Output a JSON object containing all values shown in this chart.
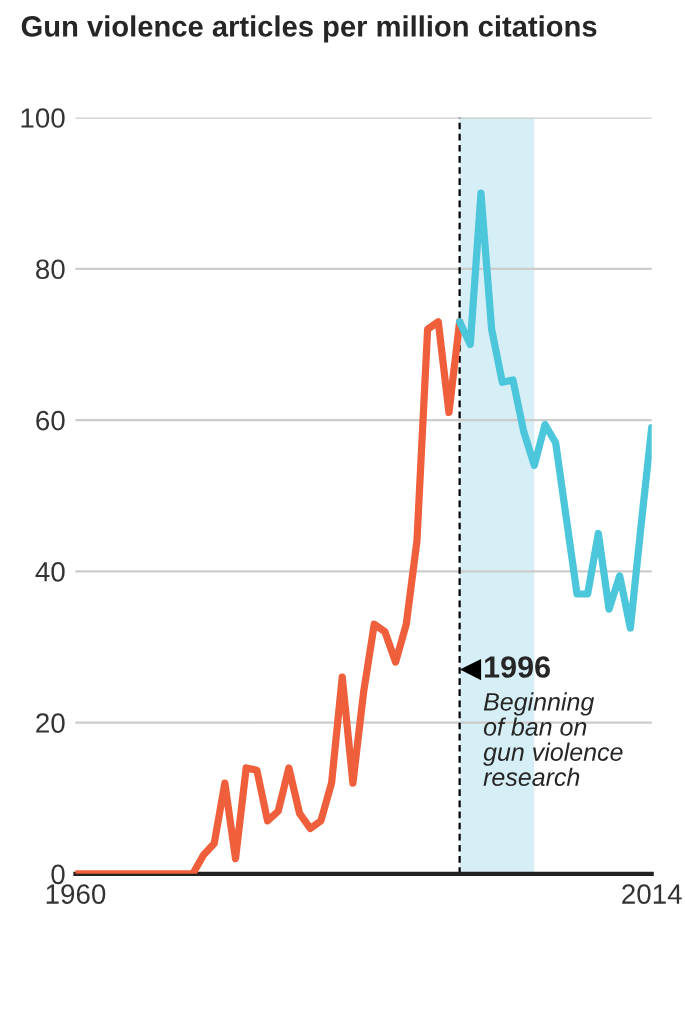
{
  "chart_data": {
    "type": "line",
    "title": "Gun violence articles per million citations",
    "series": [
      {
        "color": "#ef5f3c",
        "x": [
          1960,
          1961,
          1962,
          1963,
          1964,
          1965,
          1966,
          1967,
          1968,
          1969,
          1970,
          1971,
          1972,
          1973,
          1974,
          1975,
          1976,
          1977,
          1978,
          1979,
          1980,
          1981,
          1982,
          1983,
          1984,
          1985,
          1986,
          1987,
          1988,
          1989,
          1990,
          1991,
          1992,
          1993,
          1994,
          1995,
          1996
        ],
        "values": [
          0,
          0,
          0,
          0,
          0,
          0,
          0,
          0,
          0,
          0,
          0,
          0,
          2.5,
          4,
          12,
          2,
          14,
          13.7,
          7,
          8.3,
          14,
          8,
          6,
          7,
          12,
          26,
          12,
          24,
          33,
          32,
          28,
          33,
          44,
          72,
          73,
          61,
          73
        ]
      },
      {
        "color": "#4cc6da",
        "x": [
          1996,
          1997,
          1998,
          1999,
          2000,
          2001,
          2002,
          2003,
          2004,
          2005,
          2006,
          2007,
          2008,
          2009,
          2010,
          2011,
          2012,
          2013,
          2014
        ],
        "values": [
          73,
          70,
          90,
          72,
          65,
          65.3,
          58.5,
          54,
          59.4,
          57,
          47,
          37,
          37,
          45,
          35,
          39.4,
          32.5,
          46,
          59
        ]
      }
    ],
    "xlim": [
      1960,
      2014
    ],
    "xticks": [
      1960,
      2014
    ],
    "ylim": [
      0,
      100
    ],
    "yticks": [
      0,
      20,
      40,
      60,
      80,
      100
    ],
    "grid": "y",
    "ref_lines": [
      {
        "axis": "x",
        "value": 1996,
        "label": "1996",
        "line_style": "dashed",
        "color": "#000000"
      }
    ],
    "bands": [
      {
        "axis": "x",
        "from": 1996,
        "to": 2003,
        "color": "#d6eef6"
      }
    ],
    "annotations": [
      "Beginning\nof ban on\ngun violence\nresearch"
    ]
  }
}
